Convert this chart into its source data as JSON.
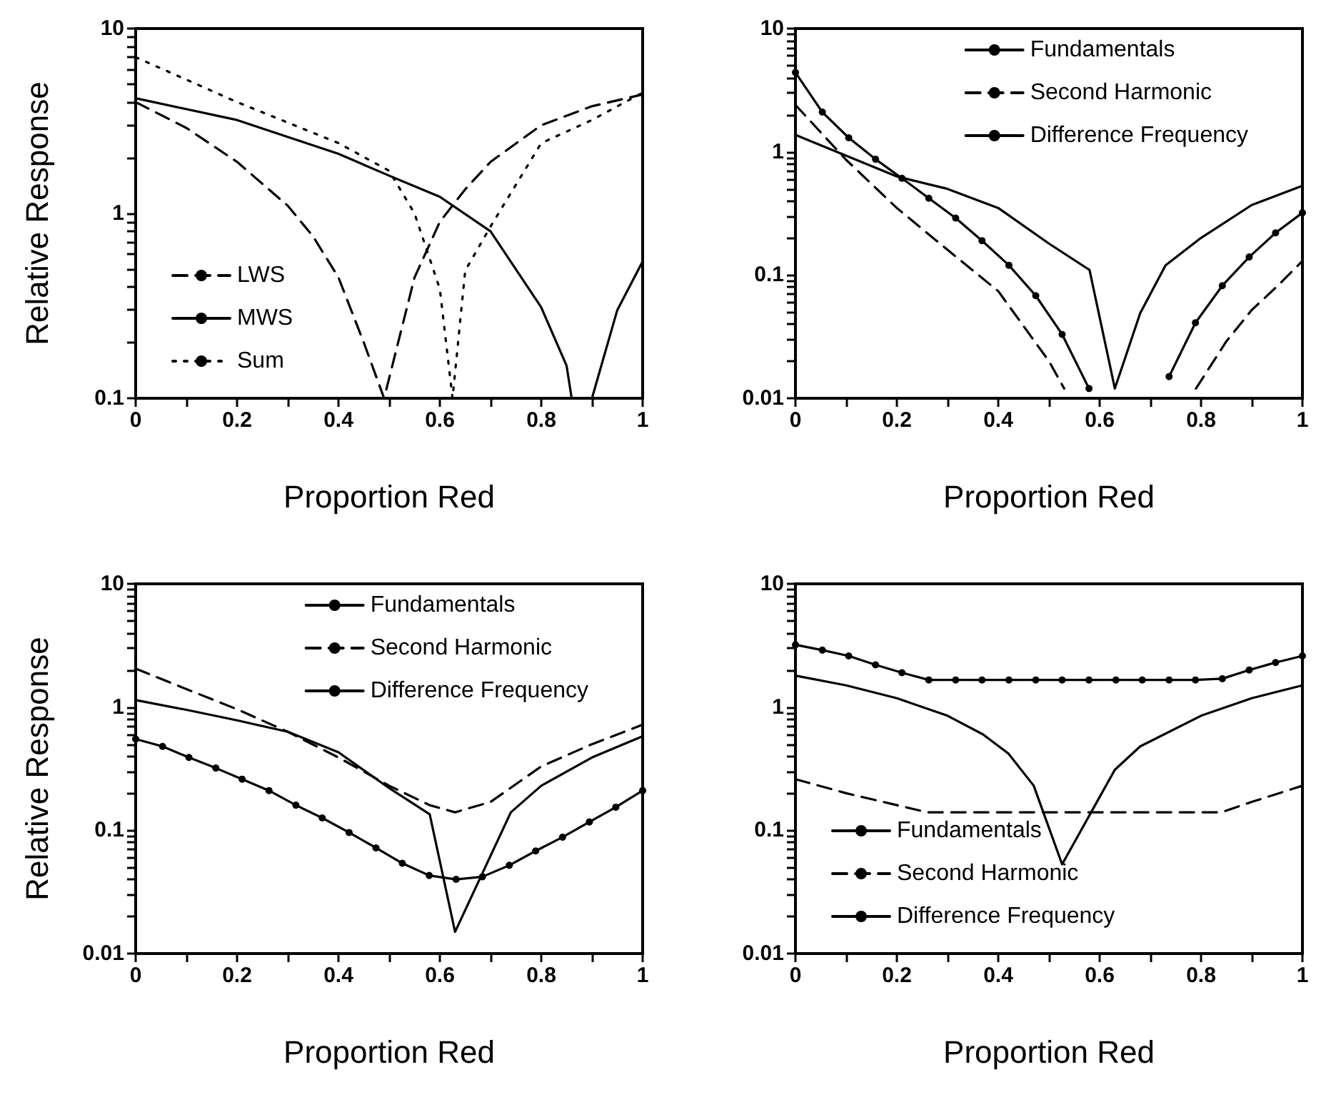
{
  "chart_data": [
    {
      "type": "line",
      "xlabel": "Proportion Red",
      "ylabel": "Relative Response",
      "log": "y",
      "grid": false,
      "legend": "bottom left",
      "xlim": [
        0,
        1
      ],
      "ylim": [
        0.1,
        10
      ],
      "xticks": [
        0,
        {
          "value": 0.1,
          "label": null
        },
        0.2,
        {
          "value": 0.3,
          "label": null
        },
        0.4,
        {
          "value": 0.5,
          "label": null
        },
        0.6,
        {
          "value": 0.7,
          "label": null
        },
        0.8,
        {
          "value": 0.9,
          "label": null
        },
        1
      ],
      "yticks": [
        0.1,
        {
          "value": 0.2,
          "label": null
        },
        {
          "value": 0.3,
          "label": null
        },
        {
          "value": 0.4,
          "label": null
        },
        {
          "value": 0.5,
          "label": null
        },
        {
          "value": 0.6,
          "label": null
        },
        {
          "value": 0.7,
          "label": null
        },
        {
          "value": 0.8,
          "label": null
        },
        {
          "value": 0.9,
          "label": null
        },
        1,
        {
          "value": 2,
          "label": null
        },
        {
          "value": 3,
          "label": null
        },
        {
          "value": 4,
          "label": null
        },
        {
          "value": 5,
          "label": null
        },
        {
          "value": 6,
          "label": null
        },
        {
          "value": 7,
          "label": null
        },
        {
          "value": 8,
          "label": null
        },
        {
          "value": 9,
          "label": null
        },
        10
      ],
      "series": [
        {
          "name": "LWS",
          "color": "#000000",
          "line_style": "dashed",
          "marker": "none",
          "x": [
            0,
            0.1,
            0.2,
            0.3,
            0.35,
            0.4,
            0.45,
            0.49,
            0.55,
            0.6,
            0.65,
            0.7,
            0.8,
            0.9,
            1
          ],
          "values": [
            4,
            2.9,
            1.9,
            1.1,
            0.75,
            0.45,
            0.2,
            0.1,
            0.45,
            0.9,
            1.35,
            1.9,
            3,
            3.8,
            4.4
          ]
        },
        {
          "name": "MWS",
          "color": "#000000",
          "line_style": "solid",
          "marker": "none",
          "x": [
            0,
            0.2,
            0.4,
            0.5,
            0.6,
            0.7,
            0.8,
            0.85,
            0.86,
            0.88,
            0.9,
            0.95,
            1
          ],
          "values": [
            4.2,
            3.2,
            2.1,
            1.6,
            1.23,
            0.8,
            0.31,
            0.15,
            0.1,
            null,
            0.1,
            0.3,
            0.55
          ]
        },
        {
          "name": "Sum",
          "color": "#000000",
          "line_style": "dotted",
          "marker": "none",
          "x": [
            0,
            0.2,
            0.4,
            0.5,
            0.55,
            0.6,
            0.625,
            0.65,
            0.7,
            0.8,
            0.9,
            1
          ],
          "values": [
            7,
            4,
            2.4,
            1.7,
            1,
            0.39,
            0.1,
            0.49,
            0.85,
            2.4,
            3.2,
            4.5
          ]
        }
      ]
    },
    {
      "type": "line",
      "xlabel": "Proportion Red",
      "log": "y",
      "grid": false,
      "legend": "top right",
      "xlim": [
        0,
        1
      ],
      "ylim": [
        0.01,
        10
      ],
      "xticks": [
        0,
        {
          "value": 0.1,
          "label": null
        },
        0.2,
        {
          "value": 0.3,
          "label": null
        },
        0.4,
        {
          "value": 0.5,
          "label": null
        },
        0.6,
        {
          "value": 0.7,
          "label": null
        },
        0.8,
        {
          "value": 0.9,
          "label": null
        },
        1
      ],
      "yticks": [
        0.01,
        {
          "value": 0.02,
          "label": null
        },
        {
          "value": 0.03,
          "label": null
        },
        {
          "value": 0.04,
          "label": null
        },
        {
          "value": 0.05,
          "label": null
        },
        {
          "value": 0.06,
          "label": null
        },
        {
          "value": 0.07,
          "label": null
        },
        {
          "value": 0.08,
          "label": null
        },
        {
          "value": 0.09,
          "label": null
        },
        0.1,
        {
          "value": 0.2,
          "label": null
        },
        {
          "value": 0.3,
          "label": null
        },
        {
          "value": 0.4,
          "label": null
        },
        {
          "value": 0.5,
          "label": null
        },
        {
          "value": 0.6,
          "label": null
        },
        {
          "value": 0.7,
          "label": null
        },
        {
          "value": 0.8,
          "label": null
        },
        {
          "value": 0.9,
          "label": null
        },
        1,
        {
          "value": 2,
          "label": null
        },
        {
          "value": 3,
          "label": null
        },
        {
          "value": 4,
          "label": null
        },
        {
          "value": 5,
          "label": null
        },
        {
          "value": 6,
          "label": null
        },
        {
          "value": 7,
          "label": null
        },
        {
          "value": 8,
          "label": null
        },
        {
          "value": 9,
          "label": null
        },
        10
      ],
      "series": [
        {
          "name": "Fundamentals",
          "color": "#000000",
          "line_style": "solid",
          "marker": "none",
          "x": [
            0,
            0.2,
            0.3,
            0.4,
            0.5,
            0.58,
            0.63,
            0.68,
            0.73,
            0.8,
            0.9,
            1
          ],
          "values": [
            1.37,
            0.63,
            0.5,
            0.35,
            0.18,
            0.11,
            0.012,
            0.049,
            0.12,
            0.2,
            0.37,
            0.53
          ]
        },
        {
          "name": "Second Harmonic",
          "color": "#000000",
          "line_style": "dashed",
          "marker": "none",
          "x": [
            0,
            0.1,
            0.2,
            0.3,
            0.4,
            0.5,
            0.53,
            0.66,
            0.79,
            0.85,
            0.9,
            0.95,
            1
          ],
          "values": [
            2.4,
            0.86,
            0.35,
            0.16,
            0.074,
            0.02,
            0.012,
            null,
            0.012,
            0.029,
            0.052,
            0.081,
            0.13
          ]
        },
        {
          "name": "Difference Frequency",
          "color": "#000000",
          "line_style": "solid",
          "marker": "circle",
          "x": [
            0,
            0.053,
            0.105,
            0.158,
            0.21,
            0.263,
            0.316,
            0.368,
            0.421,
            0.474,
            0.526,
            0.579,
            0.66,
            0.737,
            0.789,
            0.842,
            0.895,
            0.947,
            1
          ],
          "values": [
            4.4,
            2.1,
            1.3,
            0.87,
            0.61,
            0.42,
            0.29,
            0.19,
            0.12,
            0.068,
            0.033,
            0.012,
            null,
            0.015,
            0.041,
            0.082,
            0.14,
            0.22,
            0.32
          ]
        }
      ]
    },
    {
      "type": "line",
      "xlabel": "Proportion Red",
      "ylabel": "Relative Response",
      "log": "y",
      "grid": false,
      "legend": "top right",
      "xlim": [
        0,
        1
      ],
      "ylim": [
        0.01,
        10
      ],
      "xticks": [
        0,
        {
          "value": 0.1,
          "label": null
        },
        0.2,
        {
          "value": 0.3,
          "label": null
        },
        0.4,
        {
          "value": 0.5,
          "label": null
        },
        0.6,
        {
          "value": 0.7,
          "label": null
        },
        0.8,
        {
          "value": 0.9,
          "label": null
        },
        1
      ],
      "yticks": [
        0.01,
        {
          "value": 0.02,
          "label": null
        },
        {
          "value": 0.03,
          "label": null
        },
        {
          "value": 0.04,
          "label": null
        },
        {
          "value": 0.05,
          "label": null
        },
        {
          "value": 0.06,
          "label": null
        },
        {
          "value": 0.07,
          "label": null
        },
        {
          "value": 0.08,
          "label": null
        },
        {
          "value": 0.09,
          "label": null
        },
        0.1,
        {
          "value": 0.2,
          "label": null
        },
        {
          "value": 0.3,
          "label": null
        },
        {
          "value": 0.4,
          "label": null
        },
        {
          "value": 0.5,
          "label": null
        },
        {
          "value": 0.6,
          "label": null
        },
        {
          "value": 0.7,
          "label": null
        },
        {
          "value": 0.8,
          "label": null
        },
        {
          "value": 0.9,
          "label": null
        },
        1,
        {
          "value": 2,
          "label": null
        },
        {
          "value": 3,
          "label": null
        },
        {
          "value": 4,
          "label": null
        },
        {
          "value": 5,
          "label": null
        },
        {
          "value": 6,
          "label": null
        },
        {
          "value": 7,
          "label": null
        },
        {
          "value": 8,
          "label": null
        },
        {
          "value": 9,
          "label": null
        },
        10
      ],
      "series": [
        {
          "name": "Fundamentals",
          "color": "#000000",
          "line_style": "solid",
          "marker": "none",
          "x": [
            0,
            0.1,
            0.2,
            0.3,
            0.4,
            0.5,
            0.58,
            0.63,
            0.74,
            0.8,
            0.9,
            1
          ],
          "values": [
            1.14,
            0.95,
            0.78,
            0.63,
            0.43,
            0.22,
            0.135,
            0.015,
            0.14,
            0.23,
            0.39,
            0.58
          ]
        },
        {
          "name": "Second Harmonic",
          "color": "#000000",
          "line_style": "dashed",
          "marker": "none",
          "x": [
            0,
            0.1,
            0.2,
            0.3,
            0.4,
            0.5,
            0.58,
            0.63,
            0.7,
            0.8,
            0.9,
            1
          ],
          "values": [
            2.05,
            1.4,
            0.96,
            0.63,
            0.39,
            0.23,
            0.16,
            0.14,
            0.17,
            0.33,
            0.5,
            0.72
          ]
        },
        {
          "name": "Difference Frequency",
          "color": "#000000",
          "line_style": "solid",
          "marker": "circle",
          "x": [
            0,
            0.053,
            0.105,
            0.158,
            0.21,
            0.263,
            0.316,
            0.368,
            0.421,
            0.474,
            0.526,
            0.579,
            0.632,
            0.684,
            0.737,
            0.789,
            0.842,
            0.895,
            0.947,
            1
          ],
          "values": [
            0.55,
            0.48,
            0.39,
            0.32,
            0.26,
            0.21,
            0.16,
            0.126,
            0.096,
            0.072,
            0.054,
            0.043,
            0.04,
            0.042,
            0.052,
            0.068,
            0.088,
            0.117,
            0.154,
            0.21
          ]
        }
      ]
    },
    {
      "type": "line",
      "xlabel": "Proportion Red",
      "log": "y",
      "grid": false,
      "legend": "bottom left",
      "xlim": [
        0,
        1
      ],
      "ylim": [
        0.01,
        10
      ],
      "xticks": [
        0,
        {
          "value": 0.1,
          "label": null
        },
        0.2,
        {
          "value": 0.3,
          "label": null
        },
        0.4,
        {
          "value": 0.5,
          "label": null
        },
        0.6,
        {
          "value": 0.7,
          "label": null
        },
        0.8,
        {
          "value": 0.9,
          "label": null
        },
        1
      ],
      "yticks": [
        0.01,
        {
          "value": 0.02,
          "label": null
        },
        {
          "value": 0.03,
          "label": null
        },
        {
          "value": 0.04,
          "label": null
        },
        {
          "value": 0.05,
          "label": null
        },
        {
          "value": 0.06,
          "label": null
        },
        {
          "value": 0.07,
          "label": null
        },
        {
          "value": 0.08,
          "label": null
        },
        {
          "value": 0.09,
          "label": null
        },
        0.1,
        {
          "value": 0.2,
          "label": null
        },
        {
          "value": 0.3,
          "label": null
        },
        {
          "value": 0.4,
          "label": null
        },
        {
          "value": 0.5,
          "label": null
        },
        {
          "value": 0.6,
          "label": null
        },
        {
          "value": 0.7,
          "label": null
        },
        {
          "value": 0.8,
          "label": null
        },
        {
          "value": 0.9,
          "label": null
        },
        1,
        {
          "value": 2,
          "label": null
        },
        {
          "value": 3,
          "label": null
        },
        {
          "value": 4,
          "label": null
        },
        {
          "value": 5,
          "label": null
        },
        {
          "value": 6,
          "label": null
        },
        {
          "value": 7,
          "label": null
        },
        {
          "value": 8,
          "label": null
        },
        {
          "value": 9,
          "label": null
        },
        10
      ],
      "series": [
        {
          "name": "Fundamentals",
          "color": "#000000",
          "line_style": "solid",
          "marker": "none",
          "x": [
            0,
            0.1,
            0.2,
            0.3,
            0.37,
            0.42,
            0.47,
            0.526,
            0.63,
            0.68,
            0.8,
            0.9,
            1
          ],
          "values": [
            1.8,
            1.5,
            1.18,
            0.85,
            0.6,
            0.42,
            0.23,
            0.053,
            0.31,
            0.48,
            0.85,
            1.18,
            1.5
          ]
        },
        {
          "name": "Second Harmonic",
          "color": "#000000",
          "line_style": "dashed",
          "marker": "none",
          "x": [
            0,
            0.1,
            0.26,
            0.5,
            0.84,
            0.9,
            1
          ],
          "values": [
            0.26,
            0.2,
            0.14,
            0.14,
            0.14,
            0.17,
            0.23
          ]
        },
        {
          "name": "Difference Frequency",
          "color": "#000000",
          "line_style": "solid",
          "marker": "circle",
          "x": [
            0,
            0.053,
            0.105,
            0.158,
            0.21,
            0.263,
            0.316,
            0.368,
            0.421,
            0.474,
            0.526,
            0.579,
            0.632,
            0.684,
            0.737,
            0.789,
            0.842,
            0.895,
            0.947,
            1
          ],
          "values": [
            3.2,
            2.9,
            2.6,
            2.2,
            1.9,
            1.66,
            1.66,
            1.66,
            1.66,
            1.66,
            1.66,
            1.66,
            1.66,
            1.66,
            1.66,
            1.66,
            1.7,
            2,
            2.3,
            2.6
          ]
        }
      ]
    }
  ]
}
